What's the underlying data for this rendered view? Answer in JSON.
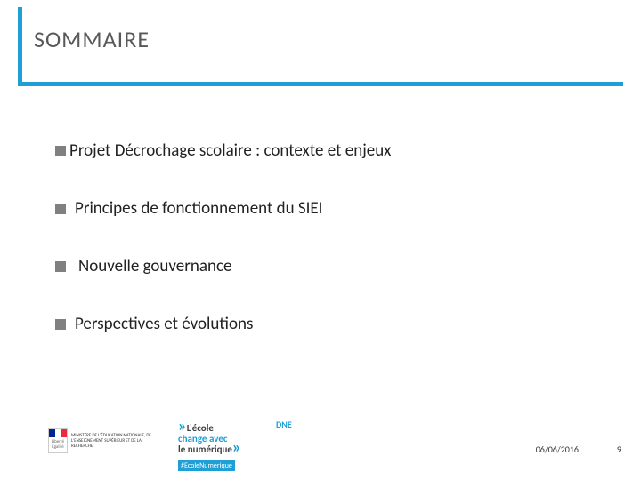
{
  "title": "SOMMAIRE",
  "accent_color": "#1e9fd6",
  "bullet_color": "#808080",
  "title_color": "#595959",
  "text_color": "#222222",
  "items": [
    "Projet Décrochage scolaire : contexte et enjeux",
    "Principes de fonctionnement du SIEI",
    "Nouvelle gouvernance",
    "Perspectives et évolutions"
  ],
  "footer": {
    "ministere_lines": "MINISTÈRE DE L'ÉDUCATION NATIONALE, DE L'ENSEIGNEMENT SUPÉRIEUR ET DE LA RECHERCHE",
    "ecole_line1": "L'école",
    "ecole_line2": "change avec",
    "ecole_line3": "le numérique",
    "ecole_sub": "#EcoleNumerique",
    "dne": "DNE",
    "date": "06/06/2016",
    "page": "9"
  }
}
